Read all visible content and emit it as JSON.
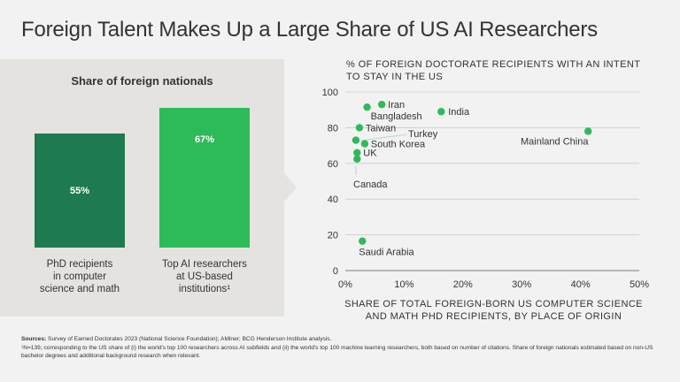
{
  "title": "Foreign Talent Makes Up a Large Share of US AI Researchers",
  "left_panel": {
    "title": "Share of foreign nationals",
    "bars": [
      {
        "value_label": "55%",
        "value": 55,
        "label_lines": [
          "PhD recipients",
          "in computer",
          "science and math"
        ],
        "color": "#1e7a4f"
      },
      {
        "value_label": "67%",
        "value": 67,
        "label_lines": [
          "Top AI researchers",
          "at US-based",
          "institutions¹"
        ],
        "color": "#2dbb59"
      }
    ]
  },
  "chart_data": {
    "type": "scatter",
    "title": "% OF FOREIGN DOCTORATE RECIPIENTS WITH AN INTENT TO STAY IN THE US",
    "xlabel": "SHARE OF TOTAL FOREIGN-BORN US COMPUTER SCIENCE AND MATH PHD RECIPIENTS, BY PLACE OF ORIGIN",
    "ylabel": "% OF FOREIGN DOCTORATE RECIPIENTS WITH AN INTENT TO STAY IN THE US",
    "xlim": [
      0,
      50
    ],
    "ylim": [
      0,
      100
    ],
    "x_ticks": [
      0,
      10,
      20,
      30,
      40,
      50
    ],
    "x_tick_labels": [
      "0%",
      "10%",
      "20%",
      "30%",
      "40%",
      "50%"
    ],
    "y_ticks": [
      0,
      20,
      40,
      60,
      80,
      100
    ],
    "y_tick_labels": [
      "0",
      "20",
      "40",
      "60",
      "80",
      "100"
    ],
    "grid": "horizontal",
    "point_color": "#2dbb59",
    "points": [
      {
        "name": "Iran",
        "x": 6.2,
        "y": 93
      },
      {
        "name": "Bangladesh",
        "x": 3.7,
        "y": 91.5
      },
      {
        "name": "India",
        "x": 16.3,
        "y": 89
      },
      {
        "name": "Taiwan",
        "x": 2.4,
        "y": 80
      },
      {
        "name": "Turkey",
        "x": 1.8,
        "y": 73
      },
      {
        "name": "South Korea",
        "x": 3.3,
        "y": 71
      },
      {
        "name": "UK",
        "x": 2.0,
        "y": 66
      },
      {
        "name": "Canada",
        "x": 2.0,
        "y": 62.5
      },
      {
        "name": "Mainland China",
        "x": 41.3,
        "y": 78
      },
      {
        "name": "Saudi Arabia",
        "x": 2.9,
        "y": 16.5
      }
    ]
  },
  "sources": {
    "label": "Sources:",
    "text": " Survey of Earned Doctorates 2023 (National Science Foundation); AMiner; BCG Henderson Institute analysis.",
    "footnote": "¹N=139, corresponding to the US share of (i) the world's top 100 researchers across AI subfields and (ii) the world's top 100 machine learning researchers, both based on number of citations. Share of foreign nationals estimated based on non-US bachelor degrees and additional background research when relevant."
  }
}
